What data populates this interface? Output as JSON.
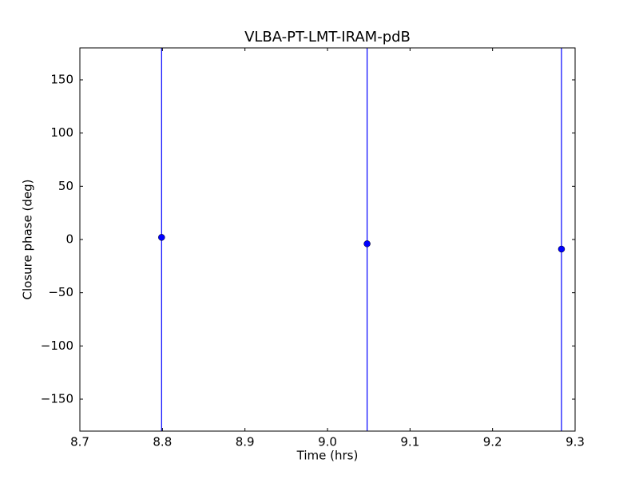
{
  "chart_data": {
    "type": "errorbar",
    "title": "VLBA-PT-LMT-IRAM-pdB",
    "xlabel": "Time (hrs)",
    "ylabel": "Closure phase (deg)",
    "x": [
      8.799,
      9.048,
      9.2835
    ],
    "values": [
      2,
      -4,
      -9
    ],
    "yerr": [
      200,
      200,
      200
    ],
    "color": "#0000ff",
    "xlim": [
      8.7,
      9.3
    ],
    "xticks": [
      8.7,
      8.8,
      8.9,
      {
        "value": 9,
        "label": "9.0"
      },
      9.1,
      9.2,
      9.3
    ],
    "ylim": [
      -180,
      180
    ],
    "yticks": [
      {
        "value": -150,
        "label": "−150"
      },
      {
        "value": -100,
        "label": "−100"
      },
      {
        "value": -50,
        "label": "−50"
      },
      0,
      50,
      100,
      150
    ]
  }
}
